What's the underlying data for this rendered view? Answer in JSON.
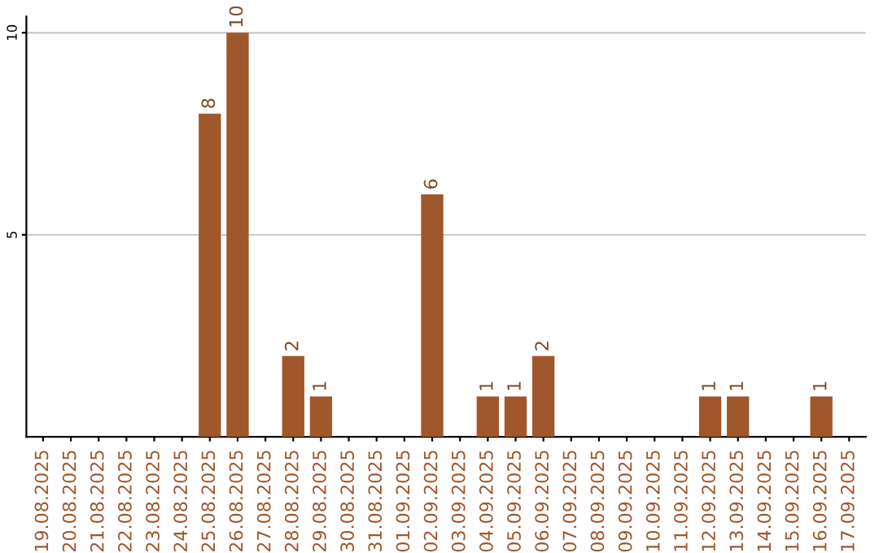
{
  "chart_data": {
    "type": "bar",
    "categories": [
      "19.08.2025",
      "20.08.2025",
      "21.08.2025",
      "22.08.2025",
      "23.08.2025",
      "24.08.2025",
      "25.08.2025",
      "26.08.2025",
      "27.08.2025",
      "28.08.2025",
      "29.08.2025",
      "30.08.2025",
      "31.08.2025",
      "01.09.2025",
      "02.09.2025",
      "03.09.2025",
      "04.09.2025",
      "05.09.2025",
      "06.09.2025",
      "07.09.2025",
      "08.09.2025",
      "09.09.2025",
      "10.09.2025",
      "11.09.2025",
      "12.09.2025",
      "13.09.2025",
      "14.09.2025",
      "15.09.2025",
      "16.09.2025",
      "17.09.2025"
    ],
    "values": [
      0,
      0,
      0,
      0,
      0,
      0,
      8,
      10,
      0,
      2,
      1,
      0,
      0,
      0,
      6,
      0,
      1,
      1,
      2,
      0,
      0,
      0,
      0,
      0,
      1,
      1,
      0,
      0,
      1,
      0
    ],
    "value_labels": [
      null,
      null,
      null,
      null,
      null,
      null,
      "8",
      "10",
      null,
      "2",
      "1",
      null,
      null,
      null,
      "6",
      null,
      "1",
      "1",
      "2",
      null,
      null,
      null,
      null,
      null,
      "1",
      "1",
      null,
      null,
      "1",
      null
    ],
    "color": "#a0572b",
    "ylim": [
      0,
      10.4
    ],
    "yticks": [
      5,
      10
    ],
    "grid": "y"
  }
}
